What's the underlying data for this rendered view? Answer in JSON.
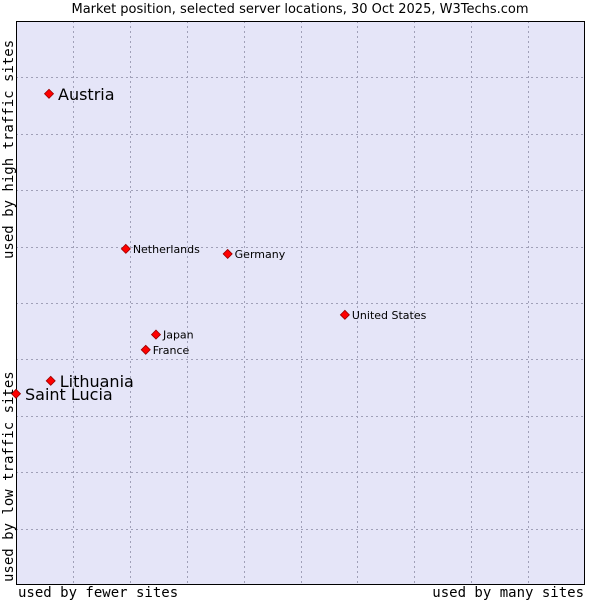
{
  "chart_data": {
    "type": "scatter",
    "title": "Market position, selected server locations, 30 Oct 2025, W3Techs.com",
    "xlabel_left": "used by fewer sites",
    "xlabel_right": "used by many sites",
    "ylabel_bottom": "used by low traffic sites",
    "ylabel_top": "used by high traffic sites",
    "xlim": [
      0,
      10
    ],
    "ylim": [
      0,
      10
    ],
    "grid": true,
    "colors": {
      "plot_background": "#e5e5f8",
      "grid": "#a0a0b8",
      "border": "#000000",
      "marker_fill": "#ff0000",
      "marker_stroke": "#990000"
    },
    "points": [
      {
        "label": "Austria",
        "x": 0.58,
        "y": 8.71,
        "size": "large"
      },
      {
        "label": "Netherlands",
        "x": 1.93,
        "y": 5.96,
        "size": "small"
      },
      {
        "label": "Germany",
        "x": 3.72,
        "y": 5.87,
        "size": "small"
      },
      {
        "label": "United States",
        "x": 5.78,
        "y": 4.79,
        "size": "small"
      },
      {
        "label": "Japan",
        "x": 2.46,
        "y": 4.44,
        "size": "small"
      },
      {
        "label": "France",
        "x": 2.28,
        "y": 4.17,
        "size": "small"
      },
      {
        "label": "Lithuania",
        "x": 0.61,
        "y": 3.62,
        "size": "large"
      },
      {
        "label": "Saint Lucia",
        "x": 0.0,
        "y": 3.39,
        "size": "large"
      }
    ]
  }
}
